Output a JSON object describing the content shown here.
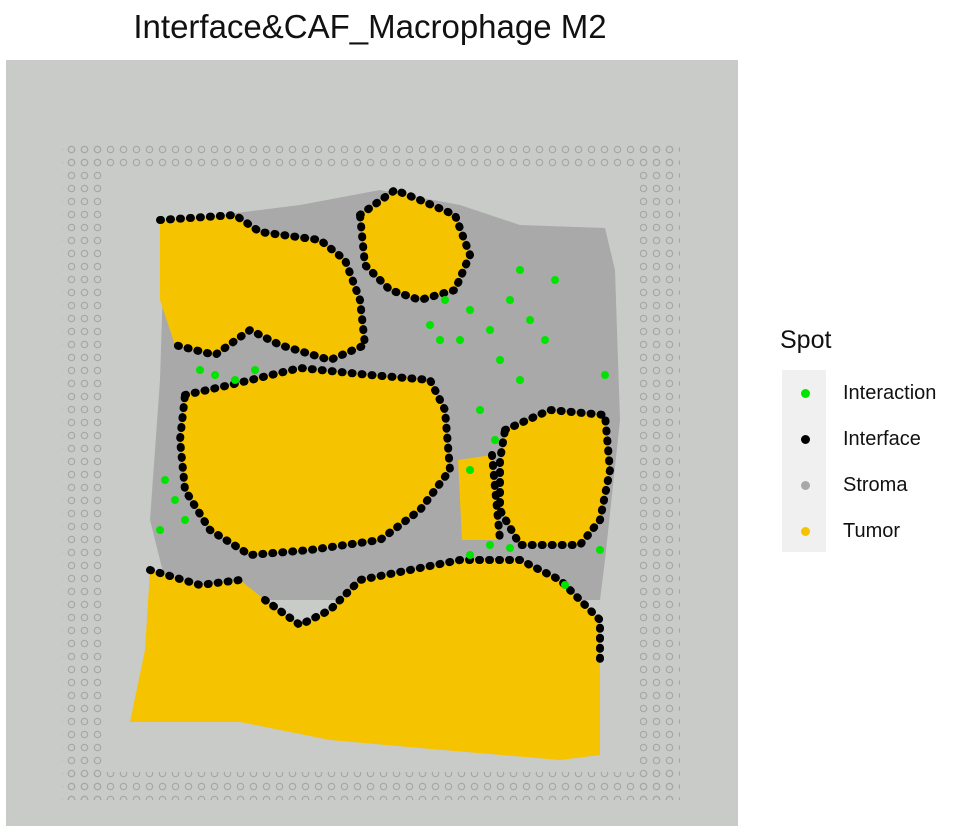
{
  "chart_data": {
    "type": "scatter",
    "title": "Interface&CAF_Macrophage M2",
    "legend_title": "Spot",
    "legend_position": "right",
    "series": [
      {
        "name": "Interaction",
        "color": "#00e400"
      },
      {
        "name": "Interface",
        "color": "#000000"
      },
      {
        "name": "Stroma",
        "color": "#a8a8a8"
      },
      {
        "name": "Tumor",
        "color": "#f5c300"
      }
    ],
    "background": "tissue histology image",
    "grid": false
  }
}
